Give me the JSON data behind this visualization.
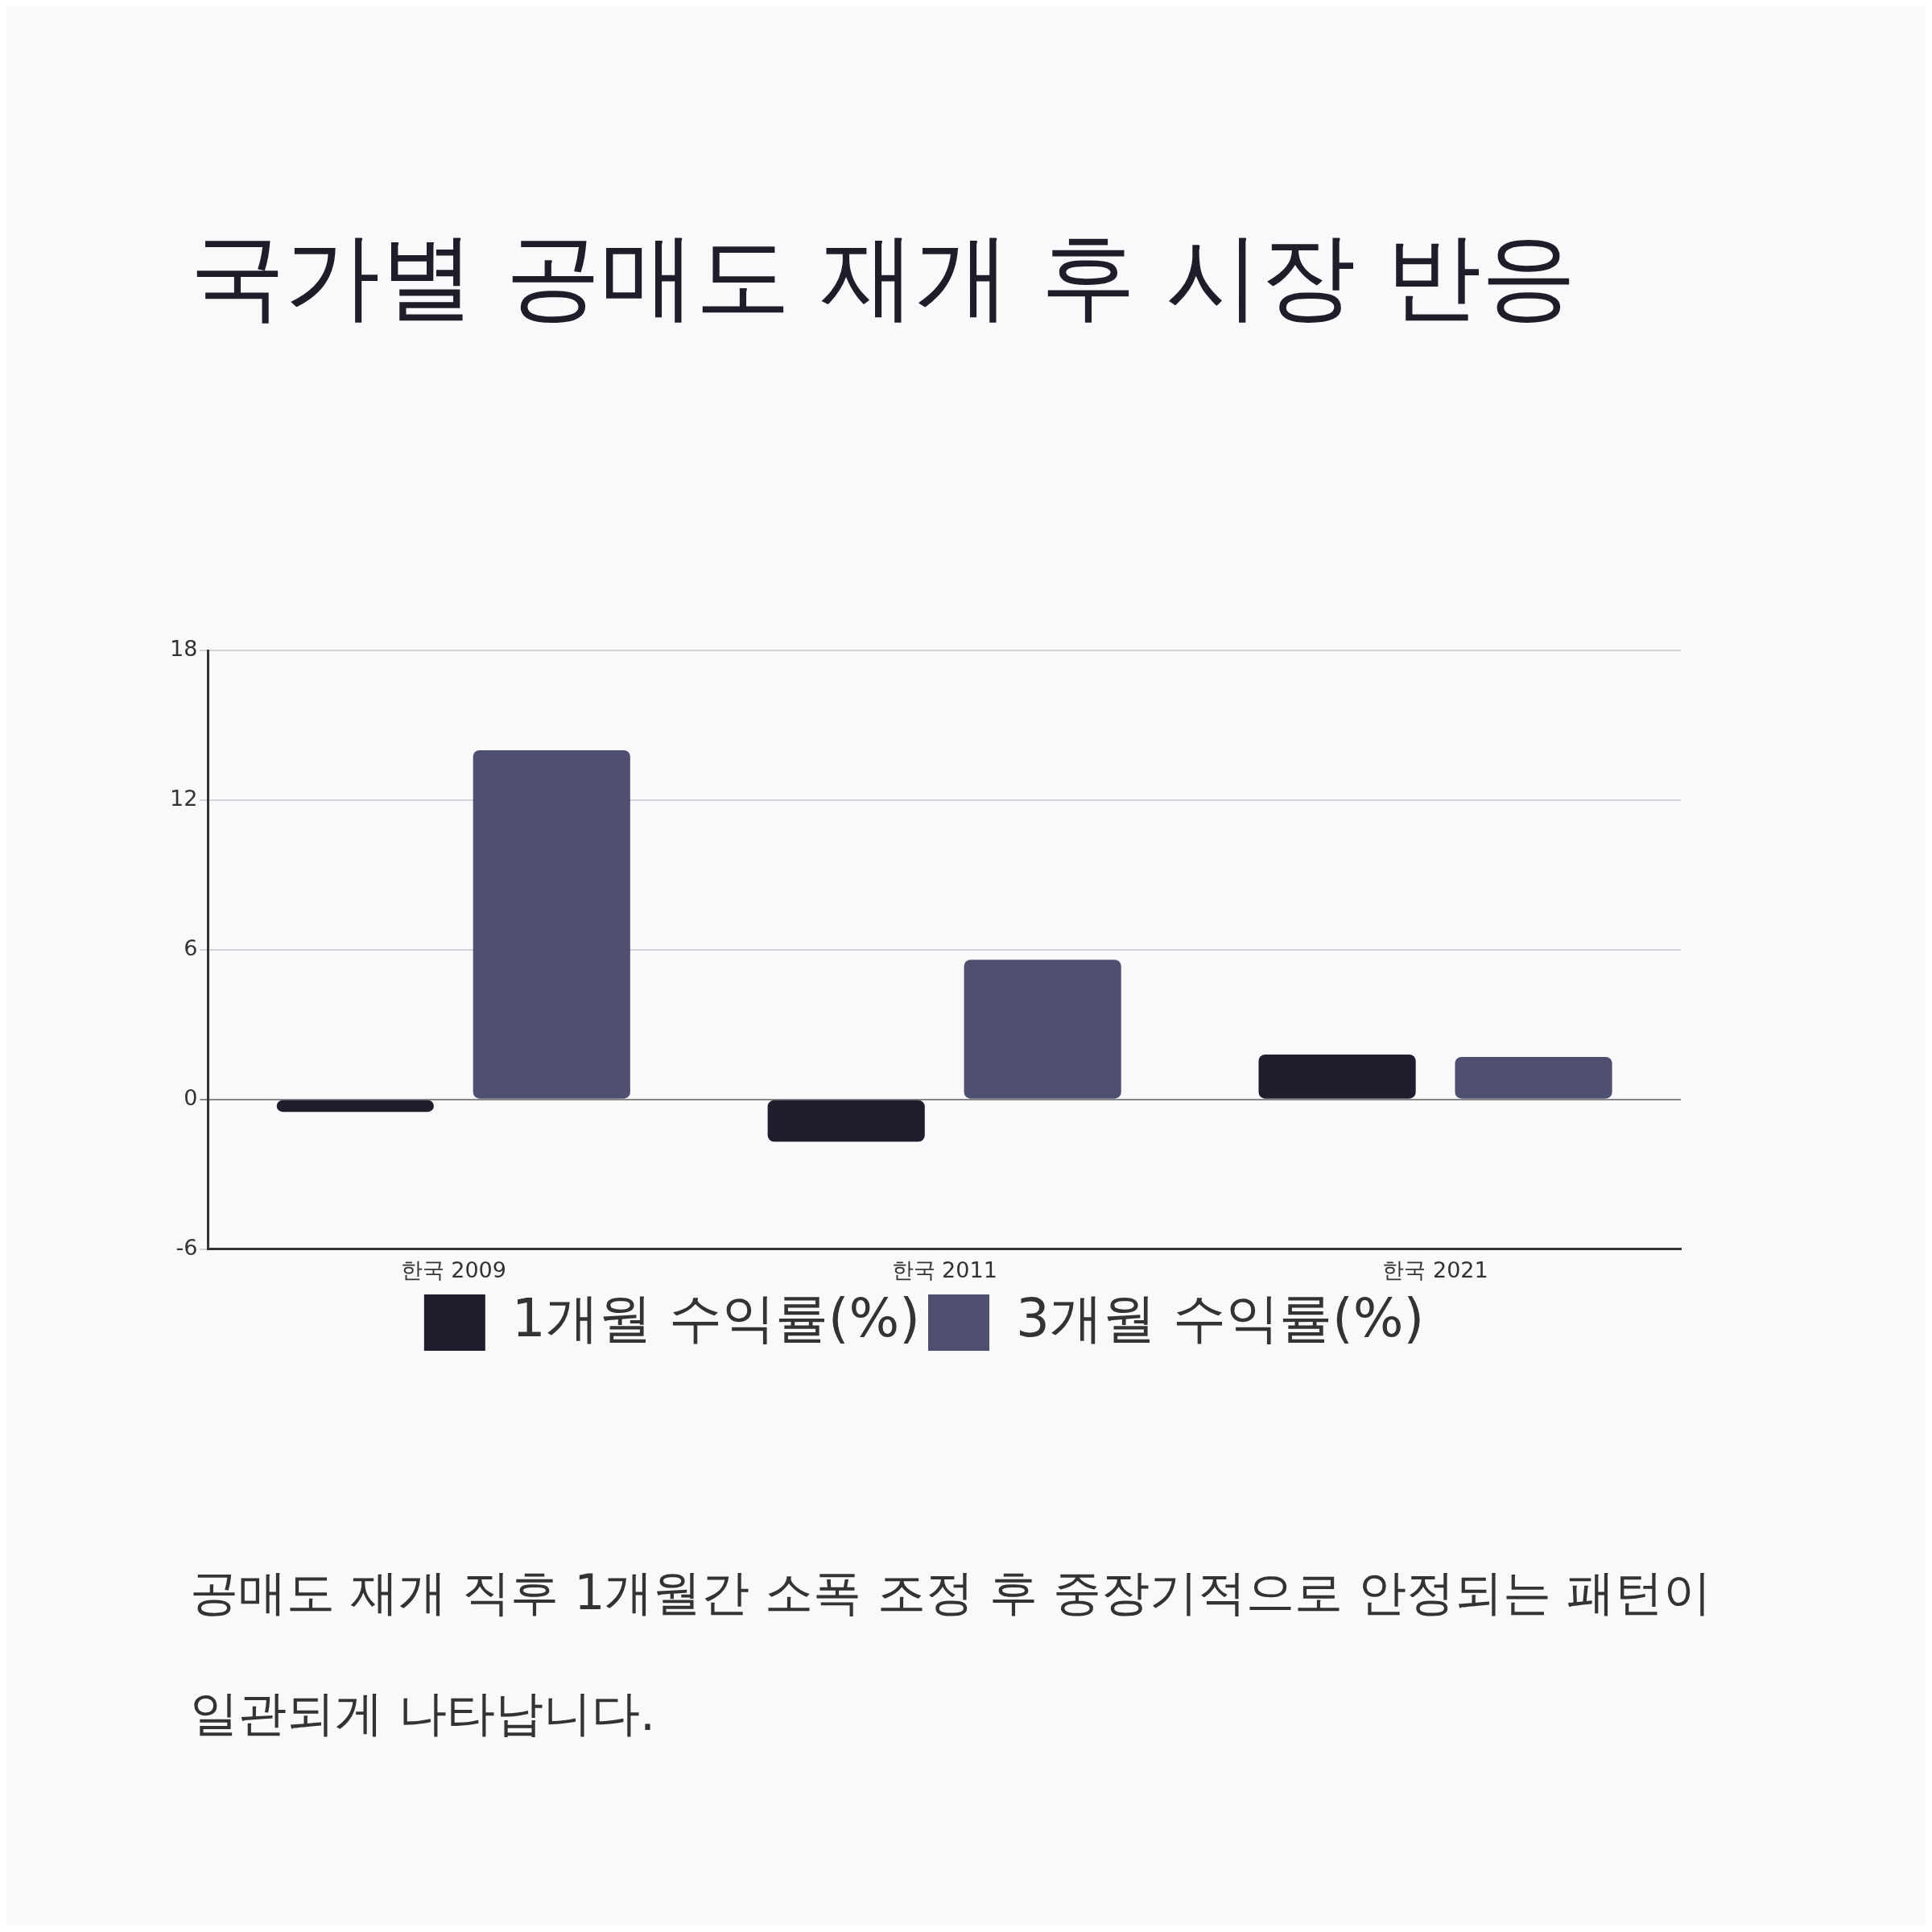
{
  "chart_data": {
    "type": "bar",
    "title": "국가별 공매도 재개 후 시장 반응",
    "categories": [
      "한국 2009",
      "한국 2011",
      "한국 2021"
    ],
    "series": [
      {
        "name": "1개월 수익률(%)",
        "color": "#1f1e2e",
        "values": [
          -0.5,
          -1.7,
          1.8
        ]
      },
      {
        "name": "3개월 수익률(%)",
        "color": "#4f4f70",
        "values": [
          14.0,
          5.6,
          1.7
        ]
      }
    ],
    "ylim": [
      -6,
      18
    ],
    "yticks": [
      -6,
      0,
      6,
      12,
      18
    ],
    "grid": "y",
    "legend": "bottom",
    "annotations": [
      "공매도 재개 직후 1개월간 소폭 조정 후 중장기적으로 안정되는 패턴이 일관되게 나타납니다."
    ]
  }
}
